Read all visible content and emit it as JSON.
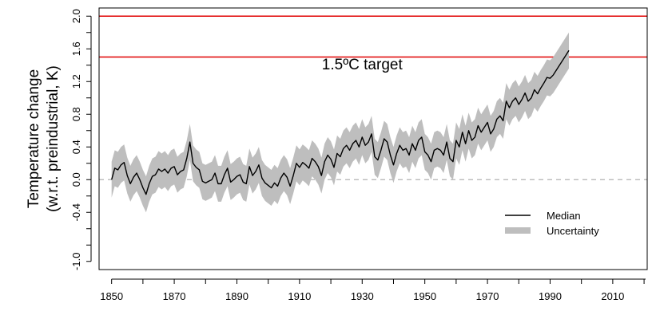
{
  "chart_data": {
    "type": "line",
    "ylabel_line1": "Temperature change",
    "ylabel_line2": "(w.r.t. preindustrial, K)",
    "xlim": [
      1846,
      2021
    ],
    "ylim": [
      -1.1,
      2.1
    ],
    "x_ticks": [
      1850,
      1870,
      1890,
      1910,
      1930,
      1950,
      1970,
      1990,
      2010
    ],
    "y_ticks": [
      -1.0,
      -0.8,
      -0.6,
      -0.4,
      -0.2,
      0.0,
      0.2,
      0.4,
      0.6,
      0.8,
      1.0,
      1.2,
      1.4,
      1.6,
      1.8,
      2.0
    ],
    "y_tick_labels": [
      {
        "value": -1.0,
        "label": "-1.0"
      },
      {
        "value": -0.4,
        "label": "-0.4"
      },
      {
        "value": 0.0,
        "label": "0.0"
      },
      {
        "value": 0.4,
        "label": "0.4"
      },
      {
        "value": 0.8,
        "label": "0.8"
      },
      {
        "value": 1.2,
        "label": "1.2"
      },
      {
        "value": 1.6,
        "label": "1.6"
      },
      {
        "value": 2.0,
        "label": "2.0"
      }
    ],
    "hlines": [
      {
        "value": 2.0,
        "color": "#e00000",
        "style": "solid"
      },
      {
        "value": 1.5,
        "color": "#e00000",
        "style": "solid"
      },
      {
        "value": 0.0,
        "color": "#b3b3b3",
        "style": "dashed"
      }
    ],
    "annotation": {
      "text": "1.5ºC target",
      "x": 1930,
      "y": 1.35
    },
    "legend": {
      "position": "bottom-right",
      "entries": [
        {
          "label": "Median",
          "color": "#000000",
          "kind": "line"
        },
        {
          "label": "Uncertainty",
          "color": "#bebebe",
          "kind": "band"
        }
      ]
    },
    "band_color": "#bebebe",
    "line_color": "#000000",
    "series": [
      {
        "x_start": 1850,
        "x_step": 1,
        "median": [
          0.0,
          0.14,
          0.12,
          0.18,
          0.21,
          0.05,
          -0.05,
          0.03,
          0.08,
          0.0,
          -0.1,
          -0.18,
          -0.05,
          0.04,
          0.06,
          0.13,
          0.1,
          0.13,
          0.08,
          0.14,
          0.16,
          0.06,
          0.1,
          0.12,
          0.26,
          0.46,
          0.2,
          0.15,
          0.12,
          -0.02,
          -0.04,
          -0.02,
          0.0,
          0.08,
          -0.05,
          -0.05,
          0.06,
          0.14,
          -0.03,
          0.0,
          0.04,
          0.06,
          -0.03,
          -0.05,
          0.16,
          0.05,
          0.1,
          0.18,
          0.02,
          -0.04,
          -0.07,
          -0.1,
          -0.04,
          -0.08,
          0.02,
          0.08,
          0.03,
          -0.08,
          0.05,
          0.2,
          0.15,
          0.21,
          0.18,
          0.14,
          0.26,
          0.22,
          0.16,
          0.05,
          0.22,
          0.3,
          0.25,
          0.15,
          0.32,
          0.28,
          0.38,
          0.42,
          0.36,
          0.44,
          0.48,
          0.4,
          0.52,
          0.42,
          0.46,
          0.56,
          0.28,
          0.24,
          0.36,
          0.5,
          0.46,
          0.3,
          0.18,
          0.32,
          0.42,
          0.36,
          0.38,
          0.3,
          0.44,
          0.36,
          0.48,
          0.52,
          0.34,
          0.3,
          0.22,
          0.36,
          0.38,
          0.36,
          0.3,
          0.46,
          0.26,
          0.22,
          0.48,
          0.4,
          0.58,
          0.44,
          0.6,
          0.48,
          0.52,
          0.66,
          0.58,
          0.64,
          0.7,
          0.56,
          0.62,
          0.74,
          0.78,
          0.72,
          0.96,
          0.88,
          0.96,
          1.0,
          0.92,
          0.98,
          1.06,
          0.96,
          1.0,
          1.1,
          1.05,
          1.12,
          1.18,
          1.25,
          1.24,
          1.28,
          1.34,
          1.4,
          1.46,
          1.52,
          1.58
        ]
      }
    ],
    "uncertainty_halfwidth_start": 0.22,
    "uncertainty_halfwidth_end": 0.22
  }
}
